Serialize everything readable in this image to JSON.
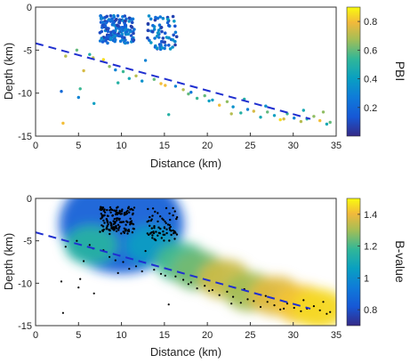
{
  "chart_data": [
    {
      "type": "scatter",
      "title": "",
      "xlabel": "Distance (km)",
      "ylabel": "Depth (km)",
      "xlim": [
        0,
        35
      ],
      "ylim": [
        -15,
        0
      ],
      "x_ticks": [
        "0",
        "5",
        "10",
        "15",
        "20",
        "25",
        "30",
        "35"
      ],
      "y_ticks": [
        "0",
        "-5",
        "-10",
        "-15"
      ],
      "grid": false,
      "colorbar": {
        "label": "PBI",
        "range": [
          0,
          0.9
        ],
        "ticks": [
          "0.2",
          "0.4",
          "0.6",
          "0.8"
        ],
        "colormap": "parula"
      },
      "trend_line": {
        "style": "dashed",
        "color": "#1f2fd0",
        "x": [
          0,
          32
        ],
        "y": [
          -4.2,
          -13.0
        ]
      },
      "clusters": [
        {
          "x": [
            7.5,
            11.5
          ],
          "y": [
            -1,
            -4.2
          ],
          "n": 160,
          "color_range": [
            0.05,
            0.35
          ]
        },
        {
          "x": [
            13,
            16.5
          ],
          "y": [
            -1,
            -5
          ],
          "n": 70,
          "color_range": [
            0.05,
            0.4
          ]
        }
      ],
      "series": [
        {
          "x": [
            3.2,
            3.5,
            4.8,
            5.0,
            5.6,
            6.3,
            6.8,
            7.9,
            8.6,
            9.3,
            10.2,
            10.9,
            11.7,
            12.4,
            13.8,
            14.6,
            15.5,
            16.3,
            17.2,
            18.1,
            18.8,
            19.7,
            20.6,
            21.4,
            22.3,
            23.0,
            23.9,
            24.7,
            25.4,
            26.2,
            27.0,
            27.8,
            28.5,
            29.3,
            30.1,
            30.9,
            31.6,
            32.4,
            33.1,
            33.9,
            34.3,
            3.0,
            5.2,
            6.7,
            9.6,
            12.8,
            15.1,
            17.8,
            20.2,
            22.8,
            24.3,
            26.8,
            28.9,
            31.2,
            33.5
          ],
          "y": [
            -13.5,
            -5.7,
            -5.0,
            -10.5,
            -7.4,
            -5.5,
            -11.2,
            -6.1,
            -6.9,
            -7.3,
            -7.5,
            -8.3,
            -8.0,
            -8.6,
            -8.4,
            -8.9,
            -12.5,
            -9.2,
            -9.6,
            -9.9,
            -10.6,
            -10.3,
            -10.8,
            -11.4,
            -11.0,
            -11.6,
            -12.3,
            -11.9,
            -12.1,
            -12.8,
            -12.2,
            -12.6,
            -13.1,
            -12.4,
            -12.9,
            -13.3,
            -13.0,
            -12.7,
            -13.2,
            -13.6,
            -13.4,
            -9.8,
            -9.5,
            -5.9,
            -8.8,
            -6.2,
            -9.1,
            -10.1,
            -10.9,
            -12.4,
            -10.7,
            -11.5,
            -13.0,
            -12.0,
            -12.2
          ],
          "c": [
            0.8,
            0.7,
            0.6,
            0.3,
            0.75,
            0.5,
            0.4,
            0.85,
            0.65,
            0.3,
            0.55,
            0.45,
            0.7,
            0.35,
            0.6,
            0.8,
            0.5,
            0.3,
            0.7,
            0.25,
            0.55,
            0.6,
            0.4,
            0.8,
            0.65,
            0.35,
            0.5,
            0.3,
            0.75,
            0.45,
            0.6,
            0.4,
            0.85,
            0.55,
            0.3,
            0.7,
            0.5,
            0.65,
            0.8,
            0.45,
            0.6,
            0.2,
            0.55,
            0.7,
            0.5,
            0.3,
            0.8,
            0.6,
            0.4,
            0.7,
            0.5,
            0.35,
            0.75,
            0.45,
            0.65
          ]
        }
      ]
    },
    {
      "type": "scatter",
      "title": "",
      "xlabel": "Distance (km)",
      "ylabel": "Depth (km)",
      "xlim": [
        0,
        35
      ],
      "ylim": [
        -15,
        0
      ],
      "x_ticks": [
        "0",
        "5",
        "10",
        "15",
        "20",
        "25",
        "30",
        "35"
      ],
      "y_ticks": [
        "0",
        "-5",
        "-10",
        "-15"
      ],
      "grid": false,
      "colorbar": {
        "label": "B-value",
        "range": [
          0.7,
          1.5
        ],
        "ticks": [
          "0.8",
          "1",
          "1.2",
          "1.4"
        ],
        "colormap": "parula"
      },
      "trend_line": {
        "style": "dashed",
        "color": "#1f2fd0",
        "x": [
          0,
          32
        ],
        "y": [
          -4.0,
          -13.0
        ]
      },
      "clusters": [
        {
          "x": [
            7.5,
            11.5
          ],
          "y": [
            -1,
            -4.2
          ],
          "n": 160,
          "color": "#000000"
        },
        {
          "x": [
            13,
            16.5
          ],
          "y": [
            -1,
            -5
          ],
          "n": 70,
          "color": "#000000"
        }
      ],
      "series": [
        {
          "x": [
            3.2,
            3.5,
            4.8,
            5.0,
            5.6,
            6.3,
            6.8,
            7.9,
            8.6,
            9.3,
            10.2,
            10.9,
            11.7,
            12.4,
            13.8,
            14.6,
            15.5,
            16.3,
            17.2,
            18.1,
            18.8,
            19.7,
            20.6,
            21.4,
            22.3,
            23.0,
            23.9,
            24.7,
            25.4,
            26.2,
            27.0,
            27.8,
            28.5,
            29.3,
            30.1,
            30.9,
            31.6,
            32.4,
            33.1,
            33.9,
            34.3,
            3.0,
            5.2,
            6.7,
            9.6,
            12.8,
            15.1,
            17.8,
            20.2,
            22.8,
            24.3,
            26.8,
            28.9,
            31.2,
            33.5
          ],
          "y": [
            -13.5,
            -5.7,
            -5.0,
            -10.5,
            -7.4,
            -5.5,
            -11.2,
            -6.1,
            -6.9,
            -7.3,
            -7.5,
            -8.3,
            -8.0,
            -8.6,
            -8.4,
            -8.9,
            -12.5,
            -9.2,
            -9.6,
            -9.9,
            -10.6,
            -10.3,
            -10.8,
            -11.4,
            -11.0,
            -11.6,
            -12.3,
            -11.9,
            -12.1,
            -12.8,
            -12.2,
            -12.6,
            -13.1,
            -12.4,
            -12.9,
            -13.3,
            -13.0,
            -12.7,
            -13.2,
            -13.6,
            -13.4,
            -9.8,
            -9.5,
            -5.9,
            -8.8,
            -6.2,
            -9.1,
            -10.1,
            -10.9,
            -12.4,
            -10.7,
            -11.5,
            -13.0,
            -12.0,
            -12.2
          ]
        }
      ],
      "b_value_field": [
        {
          "x": 10.0,
          "y": -3.0,
          "value": 0.85
        },
        {
          "x": 6.5,
          "y": -5.5,
          "value": 1.15
        },
        {
          "x": 13.5,
          "y": -5.5,
          "value": 1.05
        },
        {
          "x": 17.0,
          "y": -7.5,
          "value": 1.2
        },
        {
          "x": 19.0,
          "y": -8.5,
          "value": 1.25
        },
        {
          "x": 22.0,
          "y": -9.5,
          "value": 1.35
        },
        {
          "x": 25.0,
          "y": -11.0,
          "value": 1.3
        },
        {
          "x": 28.0,
          "y": -11.5,
          "value": 1.38
        },
        {
          "x": 31.0,
          "y": -12.5,
          "value": 1.42
        },
        {
          "x": 33.0,
          "y": -13.0,
          "value": 1.45
        }
      ]
    }
  ]
}
